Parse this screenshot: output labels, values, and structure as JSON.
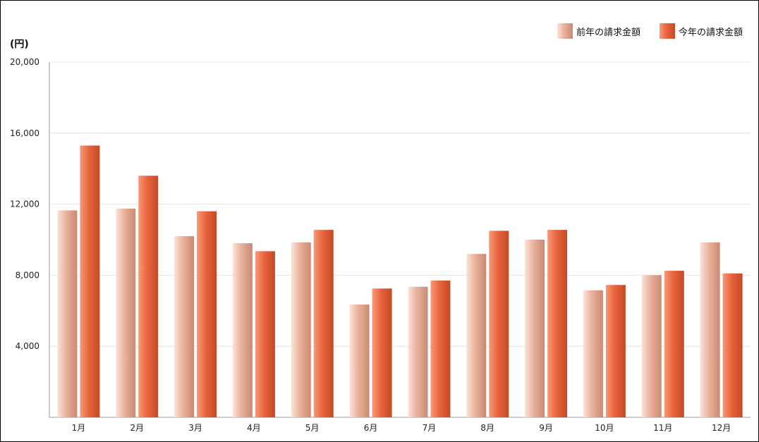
{
  "chart_data": {
    "type": "bar",
    "ylabel": "(円)",
    "ylim": [
      0,
      20000
    ],
    "yticks": [
      "4,000",
      "8,000",
      "12,000",
      "16,000",
      "20,000"
    ],
    "ytick_values": [
      4000,
      8000,
      12000,
      16000,
      20000
    ],
    "categories": [
      "1月",
      "2月",
      "3月",
      "4月",
      "5月",
      "6月",
      "7月",
      "8月",
      "9月",
      "10月",
      "11月",
      "12月"
    ],
    "series": [
      {
        "name": "前年の請求金額",
        "color": "#e8b09a",
        "values": [
          11650,
          11750,
          10200,
          9800,
          9850,
          6350,
          7350,
          9200,
          10000,
          7150,
          8000,
          9850
        ]
      },
      {
        "name": "今年の請求金額",
        "color": "#e8643c",
        "values": [
          15300,
          13600,
          11600,
          9350,
          10550,
          7250,
          7700,
          10500,
          10550,
          7450,
          8250,
          8100
        ]
      }
    ],
    "grid": true,
    "legend_position": "top-right"
  }
}
